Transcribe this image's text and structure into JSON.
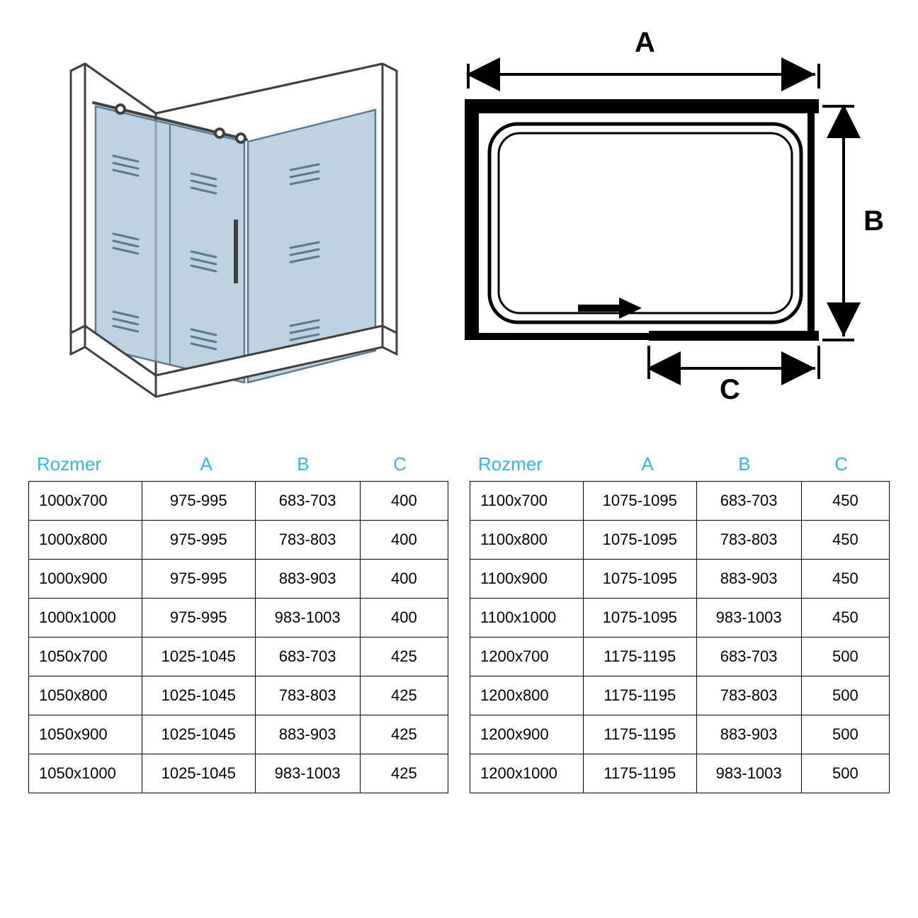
{
  "colors": {
    "header_color": "#2fb8e6",
    "text_color": "#000000",
    "border_color": "#000000",
    "background": "#ffffff",
    "glass_fill": "#a8c4d8",
    "glass_stroke": "#5a7a92",
    "frame_stroke": "#404040"
  },
  "typography": {
    "header_fontsize": 26,
    "cell_fontsize": 22,
    "dim_label_fontsize": 40
  },
  "plan_diagram": {
    "labels": {
      "top": "A",
      "right": "B",
      "bottom": "C"
    },
    "stroke_width_outer": 16,
    "stroke_width_inner": 3,
    "arrow_stroke": 4
  },
  "table_left": {
    "headers": [
      "Rozmer",
      "A",
      "B",
      "C"
    ],
    "rows": [
      [
        "1000x700",
        "975-995",
        "683-703",
        "400"
      ],
      [
        "1000x800",
        "975-995",
        "783-803",
        "400"
      ],
      [
        "1000x900",
        "975-995",
        "883-903",
        "400"
      ],
      [
        "1000x1000",
        "975-995",
        "983-1003",
        "400"
      ],
      [
        "1050x700",
        "1025-1045",
        "683-703",
        "425"
      ],
      [
        "1050x800",
        "1025-1045",
        "783-803",
        "425"
      ],
      [
        "1050x900",
        "1025-1045",
        "883-903",
        "425"
      ],
      [
        "1050x1000",
        "1025-1045",
        "983-1003",
        "425"
      ]
    ]
  },
  "table_right": {
    "headers": [
      "Rozmer",
      "A",
      "B",
      "C"
    ],
    "rows": [
      [
        "1100x700",
        "1075-1095",
        "683-703",
        "450"
      ],
      [
        "1100x800",
        "1075-1095",
        "783-803",
        "450"
      ],
      [
        "1100x900",
        "1075-1095",
        "883-903",
        "450"
      ],
      [
        "1100x1000",
        "1075-1095",
        "983-1003",
        "450"
      ],
      [
        "1200x700",
        "1175-1195",
        "683-703",
        "500"
      ],
      [
        "1200x800",
        "1175-1195",
        "783-803",
        "500"
      ],
      [
        "1200x900",
        "1175-1195",
        "883-903",
        "500"
      ],
      [
        "1200x1000",
        "1175-1195",
        "983-1003",
        "500"
      ]
    ]
  }
}
